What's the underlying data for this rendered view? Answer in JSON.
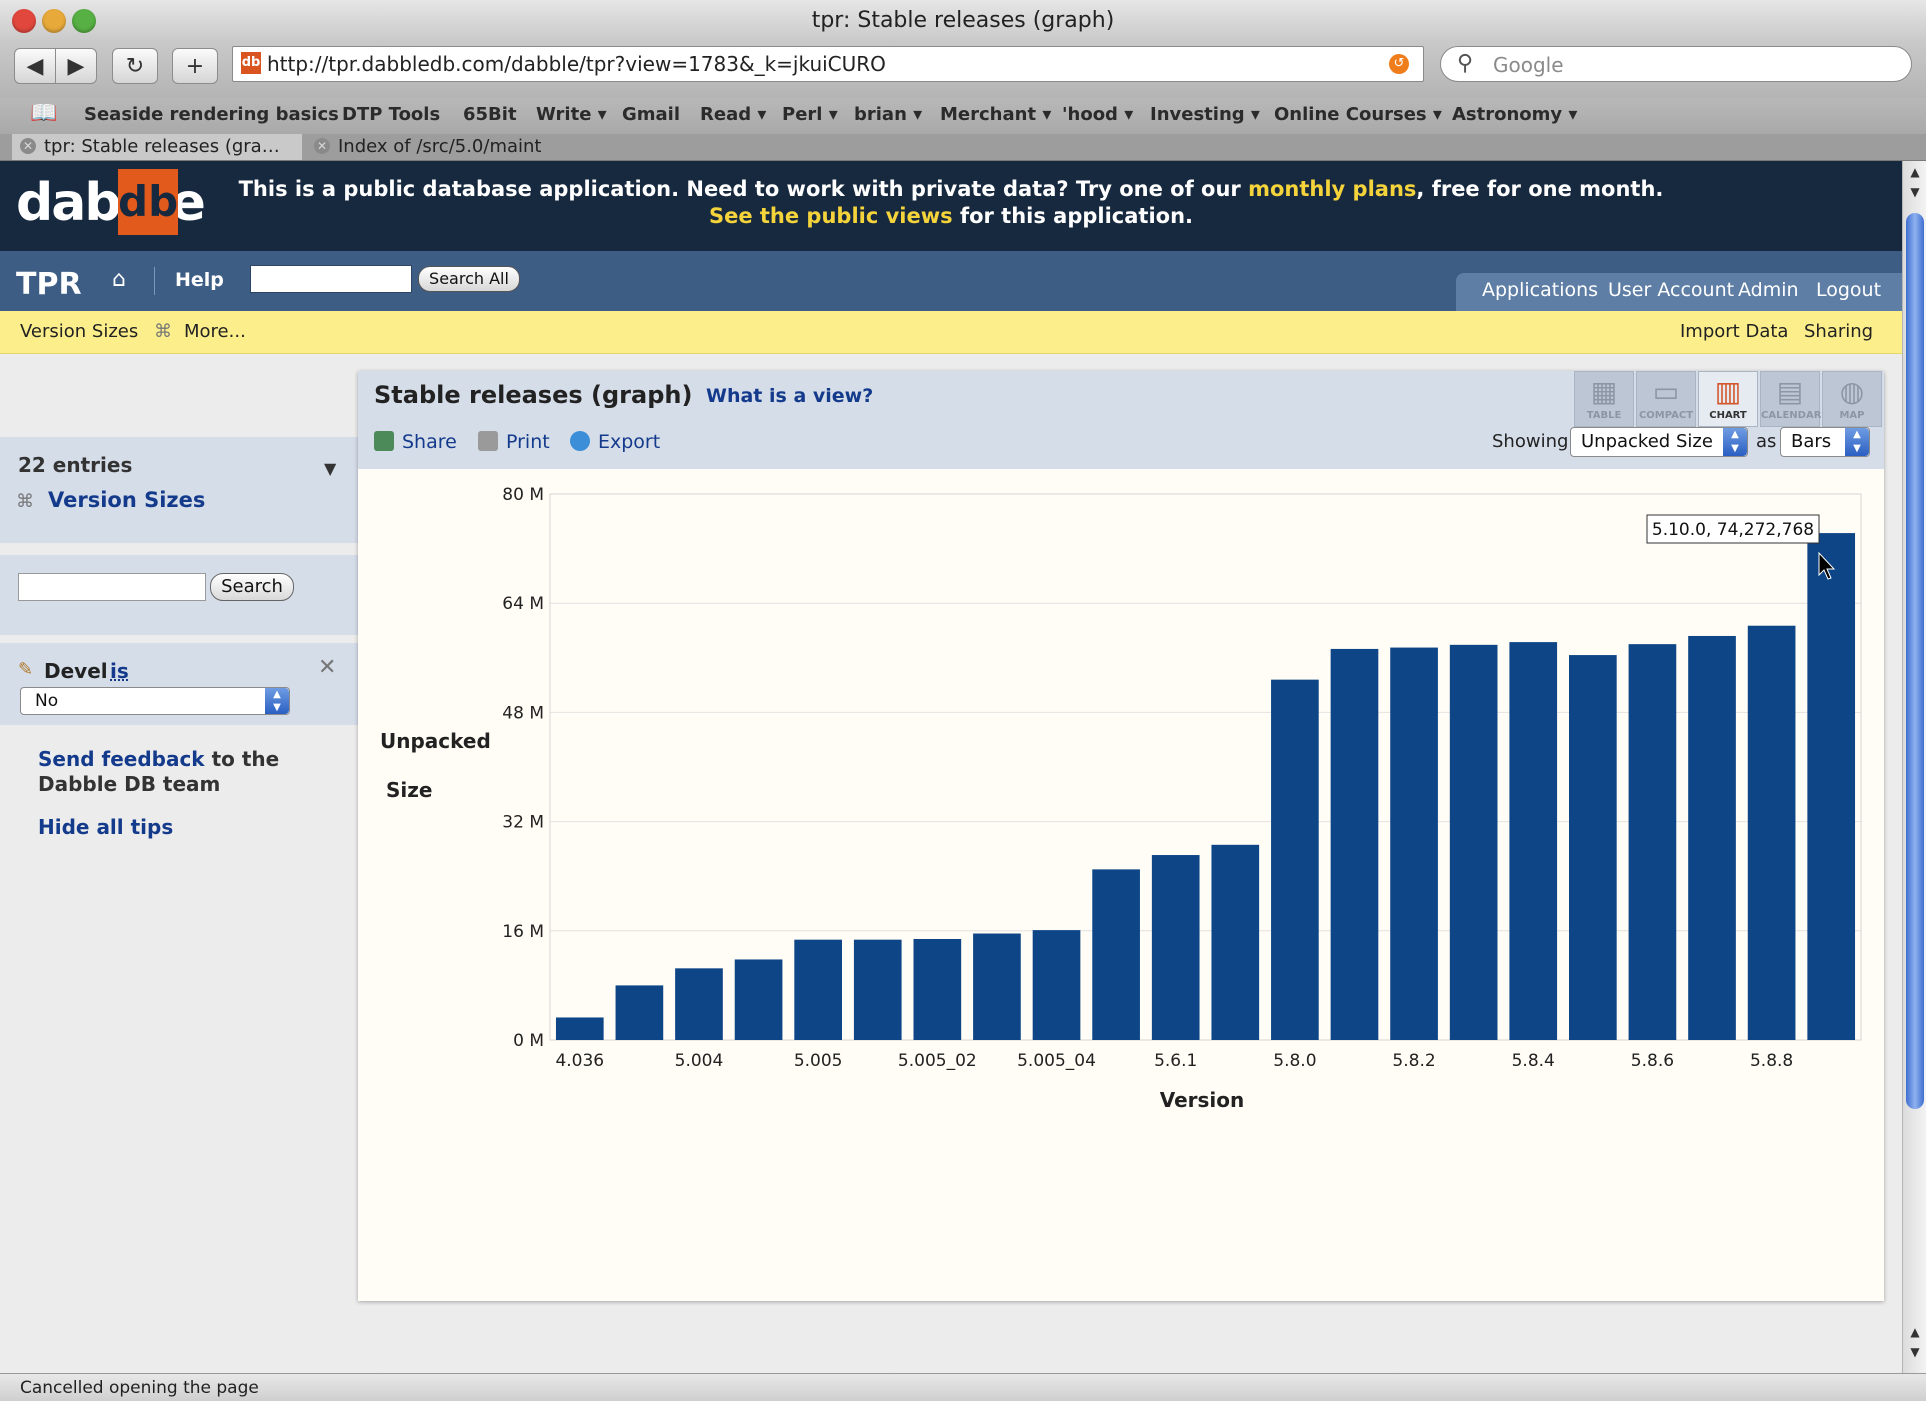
{
  "window": {
    "title": "tpr: Stable releases (graph)"
  },
  "toolbar": {
    "url": "http://tpr.dabbledb.com/dabble/tpr?view=1783&_k=jkuiCURO",
    "search_placeholder": "Google"
  },
  "bookmarks": [
    "Seaside rendering basics",
    "DTP Tools",
    "65Bit",
    "Write ▾",
    "Gmail",
    "Read ▾",
    "Perl ▾",
    "brian ▾",
    "Merchant ▾",
    "'hood ▾",
    "Investing ▾",
    "Online Courses ▾",
    "Astronomy ▾"
  ],
  "tabs": [
    {
      "label": "tpr: Stable releases (gra…",
      "active": true
    },
    {
      "label": "Index of /src/5.0/maint",
      "active": false
    }
  ],
  "banner": {
    "logo_text": "dabble",
    "logo_box": "db",
    "line1_pre": "This is a public database application. Need to work with private data? Try one of our ",
    "line1_link": "monthly plans",
    "line1_post": ", free for one month.",
    "line2_link": "See the public views",
    "line2_post": " for this application."
  },
  "nav": {
    "app_name": "TPR",
    "help": "Help",
    "search_button": "Search All",
    "right_links": [
      "Applications",
      "User Account",
      "Admin",
      "Logout"
    ]
  },
  "subbar": {
    "left": [
      "Version Sizes",
      "More..."
    ],
    "right": [
      "Import Data",
      "Sharing"
    ]
  },
  "sidebar": {
    "entries": "22 entries",
    "category": "Version Sizes",
    "search_button": "Search",
    "filter_field": "Devel",
    "filter_op": "is",
    "filter_value": "No",
    "feedback_link": "Send feedback",
    "feedback_rest": " to the",
    "feedback_line2": "Dabble DB team",
    "hide_tips": "Hide all tips"
  },
  "view": {
    "title": "Stable releases (graph)",
    "what_is": "What is a view?",
    "actions": [
      "Share",
      "Print",
      "Export"
    ],
    "view_types": [
      "TABLE",
      "COMPACT",
      "CHART",
      "CALENDAR",
      "MAP"
    ],
    "active_view_type": "CHART",
    "showing_label": "Showing",
    "measure": "Unpacked Size",
    "as_label": "as",
    "chart_kind": "Bars"
  },
  "chart_data": {
    "type": "bar",
    "xlabel": "Version",
    "ylabel": [
      "Unpacked",
      "Size"
    ],
    "ylim": [
      0,
      80000000
    ],
    "yticks": [
      0,
      16000000,
      32000000,
      48000000,
      64000000,
      80000000
    ],
    "ytick_labels": [
      "0 M",
      "16 M",
      "32 M",
      "48 M",
      "64 M",
      "80 M"
    ],
    "xtick_labels": [
      "4.036",
      "5.004",
      "5.005",
      "5.005_02",
      "5.005_04",
      "5.6.1",
      "5.8.0",
      "5.8.2",
      "5.8.4",
      "5.8.6",
      "5.8.8"
    ],
    "xtick_every": 2,
    "values": [
      3300000,
      8000000,
      10500000,
      11800000,
      14700000,
      14700000,
      14800000,
      15600000,
      16100000,
      25000000,
      27100000,
      28600000,
      52800000,
      57300000,
      57500000,
      57900000,
      58300000,
      56400000,
      58000000,
      59200000,
      60700000,
      74272768
    ],
    "bar_color": "#0d4586",
    "grid": true,
    "tooltip": "5.10.0, 74,272,768"
  },
  "status": {
    "text": "Cancelled opening the page"
  }
}
